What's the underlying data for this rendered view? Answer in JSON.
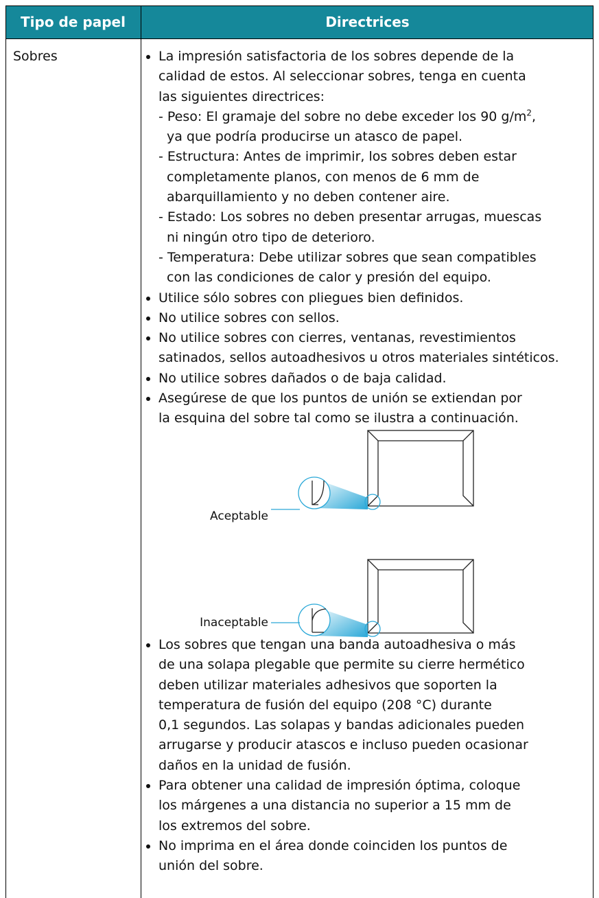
{
  "header": {
    "col1": "Tipo de papel",
    "col2": "Directrices"
  },
  "row": {
    "type": "Sobres",
    "bullets_before": [
      {
        "lines": [
          "La impresión satisfactoria de los sobres depende de la",
          "calidad de estos. Al seleccionar sobres, tenga en cuenta",
          "las siguientes directrices:"
        ],
        "subitems": [
          {
            "lines": [
              [
                {
                  "text": "- Peso: El gramaje del sobre no debe exceder los 90 g/m"
                },
                {
                  "sup": "2"
                },
                {
                  "text": ","
                }
              ],
              "ya que podría producirse un atasco de papel."
            ]
          },
          {
            "lines": [
              "- Estructura: Antes de imprimir, los sobres deben estar",
              "completamente planos, con menos de 6 mm de",
              "abarquillamiento y no deben contener aire."
            ]
          },
          {
            "lines": [
              "- Estado: Los sobres no deben presentar arrugas, muescas",
              "ni ningún otro tipo de deterioro."
            ]
          },
          {
            "lines": [
              "- Temperatura: Debe utilizar sobres que sean compatibles",
              "con las condiciones de calor y presión del equipo."
            ]
          }
        ]
      },
      {
        "lines": [
          "Utilice sólo sobres con pliegues bien definidos."
        ]
      },
      {
        "lines": [
          "No utilice sobres con sellos."
        ]
      },
      {
        "lines": [
          "No utilice sobres con cierres, ventanas, revestimientos",
          "satinados, sellos autoadhesivos u otros materiales sintéticos."
        ]
      },
      {
        "lines": [
          "No utilice sobres dañados o de baja calidad."
        ]
      },
      {
        "lines": [
          "Asegúrese de que los puntos de unión se extiendan por",
          "la esquina del sobre tal como se ilustra a continuación."
        ]
      }
    ],
    "figure": {
      "acceptable": "Aceptable",
      "unacceptable": "Inaceptable"
    },
    "bullets_after": [
      {
        "lines": [
          "Los sobres que tengan una banda autoadhesiva o más",
          "de una solapa plegable que permite su cierre hermético",
          "deben utilizar materiales adhesivos que soporten la",
          "temperatura de fusión del equipo (208 °C) durante",
          "0,1 segundos. Las solapas y bandas adicionales pueden",
          "arrugarse y producir atascos e incluso pueden ocasionar",
          "daños en la unidad de fusión."
        ]
      },
      {
        "lines": [
          "Para obtener una calidad de impresión óptima, coloque",
          "los márgenes a una distancia no superior a 15 mm de",
          "los extremos del sobre."
        ]
      },
      {
        "lines": [
          "No imprima en el área donde coinciden los puntos de",
          "unión del sobre."
        ]
      }
    ]
  }
}
